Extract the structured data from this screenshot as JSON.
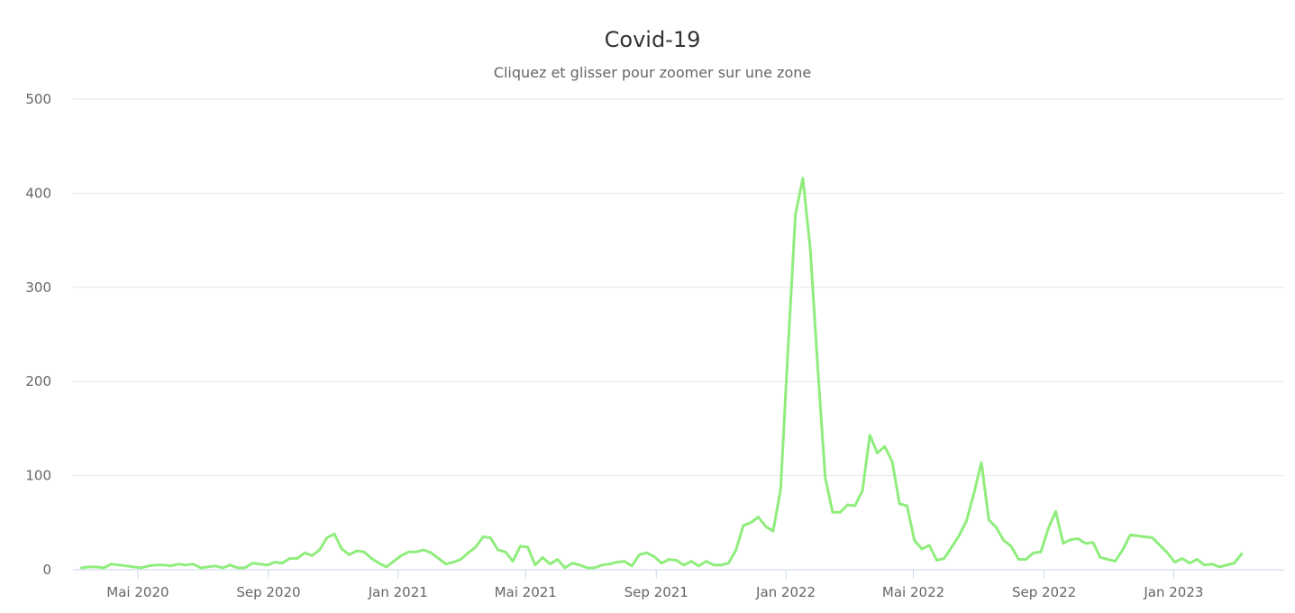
{
  "chart_data": {
    "type": "line",
    "title": "Covid-19",
    "subtitle": "Cliquez et glisser pour zoomer sur une zone",
    "xlabel": "",
    "ylabel": "",
    "ylim": [
      0,
      500
    ],
    "yticks": [
      0,
      100,
      200,
      300,
      400,
      500
    ],
    "xlim": [
      "2020-03-01",
      "2023-04-15"
    ],
    "xticks": [
      {
        "date": "2020-05-01",
        "label": "Mai 2020"
      },
      {
        "date": "2020-09-01",
        "label": "Sep 2020"
      },
      {
        "date": "2021-01-01",
        "label": "Jan 2021"
      },
      {
        "date": "2021-05-01",
        "label": "Mai 2021"
      },
      {
        "date": "2021-09-01",
        "label": "Sep 2021"
      },
      {
        "date": "2022-01-01",
        "label": "Jan 2022"
      },
      {
        "date": "2022-05-01",
        "label": "Mai 2022"
      },
      {
        "date": "2022-09-01",
        "label": "Sep 2022"
      },
      {
        "date": "2023-01-01",
        "label": "Jan 2023"
      }
    ],
    "grid": true,
    "legend": "none",
    "series": [
      {
        "color": "#90ed7d",
        "points": [
          [
            "2020-03-09",
            2
          ],
          [
            "2020-03-16",
            3
          ],
          [
            "2020-03-23",
            3
          ],
          [
            "2020-03-30",
            2
          ],
          [
            "2020-04-06",
            6
          ],
          [
            "2020-04-13",
            5
          ],
          [
            "2020-04-20",
            4
          ],
          [
            "2020-04-27",
            3
          ],
          [
            "2020-05-04",
            2
          ],
          [
            "2020-05-11",
            4
          ],
          [
            "2020-05-18",
            5
          ],
          [
            "2020-05-25",
            5
          ],
          [
            "2020-06-01",
            4
          ],
          [
            "2020-06-08",
            6
          ],
          [
            "2020-06-15",
            5
          ],
          [
            "2020-06-22",
            6
          ],
          [
            "2020-06-29",
            2
          ],
          [
            "2020-07-06",
            3
          ],
          [
            "2020-07-13",
            4
          ],
          [
            "2020-07-20",
            2
          ],
          [
            "2020-07-27",
            5
          ],
          [
            "2020-08-03",
            2
          ],
          [
            "2020-08-10",
            2
          ],
          [
            "2020-08-17",
            7
          ],
          [
            "2020-08-24",
            6
          ],
          [
            "2020-08-31",
            5
          ],
          [
            "2020-09-07",
            8
          ],
          [
            "2020-09-14",
            7
          ],
          [
            "2020-09-21",
            12
          ],
          [
            "2020-09-28",
            12
          ],
          [
            "2020-10-05",
            18
          ],
          [
            "2020-10-12",
            15
          ],
          [
            "2020-10-19",
            21
          ],
          [
            "2020-10-26",
            34
          ],
          [
            "2020-11-02",
            38
          ],
          [
            "2020-11-09",
            22
          ],
          [
            "2020-11-16",
            16
          ],
          [
            "2020-11-23",
            20
          ],
          [
            "2020-11-30",
            19
          ],
          [
            "2020-12-07",
            12
          ],
          [
            "2020-12-14",
            7
          ],
          [
            "2020-12-21",
            3
          ],
          [
            "2020-12-28",
            9
          ],
          [
            "2021-01-04",
            15
          ],
          [
            "2021-01-11",
            19
          ],
          [
            "2021-01-18",
            19
          ],
          [
            "2021-01-25",
            21
          ],
          [
            "2021-02-01",
            18
          ],
          [
            "2021-02-08",
            12
          ],
          [
            "2021-02-15",
            6
          ],
          [
            "2021-02-22",
            8
          ],
          [
            "2021-03-01",
            11
          ],
          [
            "2021-03-08",
            18
          ],
          [
            "2021-03-15",
            24
          ],
          [
            "2021-03-22",
            35
          ],
          [
            "2021-03-29",
            34
          ],
          [
            "2021-04-05",
            21
          ],
          [
            "2021-04-12",
            19
          ],
          [
            "2021-04-19",
            9
          ],
          [
            "2021-04-26",
            25
          ],
          [
            "2021-05-03",
            24
          ],
          [
            "2021-05-10",
            5
          ],
          [
            "2021-05-17",
            13
          ],
          [
            "2021-05-24",
            6
          ],
          [
            "2021-05-31",
            11
          ],
          [
            "2021-06-07",
            2
          ],
          [
            "2021-06-14",
            7
          ],
          [
            "2021-06-21",
            5
          ],
          [
            "2021-06-28",
            2
          ],
          [
            "2021-07-05",
            2
          ],
          [
            "2021-07-12",
            5
          ],
          [
            "2021-07-19",
            6
          ],
          [
            "2021-07-26",
            8
          ],
          [
            "2021-08-02",
            9
          ],
          [
            "2021-08-09",
            4
          ],
          [
            "2021-08-16",
            16
          ],
          [
            "2021-08-23",
            18
          ],
          [
            "2021-08-30",
            14
          ],
          [
            "2021-09-06",
            7
          ],
          [
            "2021-09-13",
            11
          ],
          [
            "2021-09-20",
            10
          ],
          [
            "2021-09-27",
            5
          ],
          [
            "2021-10-04",
            9
          ],
          [
            "2021-10-11",
            4
          ],
          [
            "2021-10-18",
            9
          ],
          [
            "2021-10-25",
            5
          ],
          [
            "2021-11-01",
            5
          ],
          [
            "2021-11-08",
            7
          ],
          [
            "2021-11-15",
            21
          ],
          [
            "2021-11-22",
            47
          ],
          [
            "2021-11-29",
            50
          ],
          [
            "2021-12-06",
            56
          ],
          [
            "2021-12-13",
            46
          ],
          [
            "2021-12-20",
            41
          ],
          [
            "2021-12-27",
            85
          ],
          [
            "2022-01-03",
            234
          ],
          [
            "2022-01-10",
            378
          ],
          [
            "2022-01-17",
            416
          ],
          [
            "2022-01-24",
            340
          ],
          [
            "2022-01-31",
            215
          ],
          [
            "2022-02-07",
            98
          ],
          [
            "2022-02-14",
            61
          ],
          [
            "2022-02-21",
            61
          ],
          [
            "2022-02-28",
            69
          ],
          [
            "2022-03-07",
            68
          ],
          [
            "2022-03-14",
            84
          ],
          [
            "2022-03-21",
            143
          ],
          [
            "2022-03-28",
            124
          ],
          [
            "2022-04-04",
            131
          ],
          [
            "2022-04-11",
            115
          ],
          [
            "2022-04-18",
            70
          ],
          [
            "2022-04-25",
            68
          ],
          [
            "2022-05-02",
            31
          ],
          [
            "2022-05-09",
            22
          ],
          [
            "2022-05-16",
            26
          ],
          [
            "2022-05-23",
            10
          ],
          [
            "2022-05-30",
            12
          ],
          [
            "2022-06-06",
            24
          ],
          [
            "2022-06-13",
            36
          ],
          [
            "2022-06-20",
            52
          ],
          [
            "2022-06-27",
            81
          ],
          [
            "2022-07-04",
            114
          ],
          [
            "2022-07-11",
            53
          ],
          [
            "2022-07-18",
            45
          ],
          [
            "2022-07-25",
            31
          ],
          [
            "2022-08-01",
            25
          ],
          [
            "2022-08-08",
            11
          ],
          [
            "2022-08-15",
            11
          ],
          [
            "2022-08-22",
            18
          ],
          [
            "2022-08-29",
            19
          ],
          [
            "2022-09-05",
            44
          ],
          [
            "2022-09-12",
            62
          ],
          [
            "2022-09-19",
            28
          ],
          [
            "2022-09-26",
            32
          ],
          [
            "2022-10-03",
            33
          ],
          [
            "2022-10-10",
            28
          ],
          [
            "2022-10-17",
            29
          ],
          [
            "2022-10-24",
            13
          ],
          [
            "2022-10-31",
            11
          ],
          [
            "2022-11-07",
            9
          ],
          [
            "2022-11-14",
            21
          ],
          [
            "2022-11-21",
            37
          ],
          [
            "2022-11-28",
            36
          ],
          [
            "2022-12-05",
            35
          ],
          [
            "2022-12-12",
            34
          ],
          [
            "2022-12-19",
            26
          ],
          [
            "2022-12-26",
            18
          ],
          [
            "2023-01-02",
            8
          ],
          [
            "2023-01-09",
            12
          ],
          [
            "2023-01-16",
            7
          ],
          [
            "2023-01-23",
            11
          ],
          [
            "2023-01-30",
            5
          ],
          [
            "2023-02-06",
            6
          ],
          [
            "2023-02-13",
            3
          ],
          [
            "2023-02-20",
            5
          ],
          [
            "2023-02-27",
            7
          ],
          [
            "2023-03-06",
            17
          ]
        ]
      }
    ]
  }
}
